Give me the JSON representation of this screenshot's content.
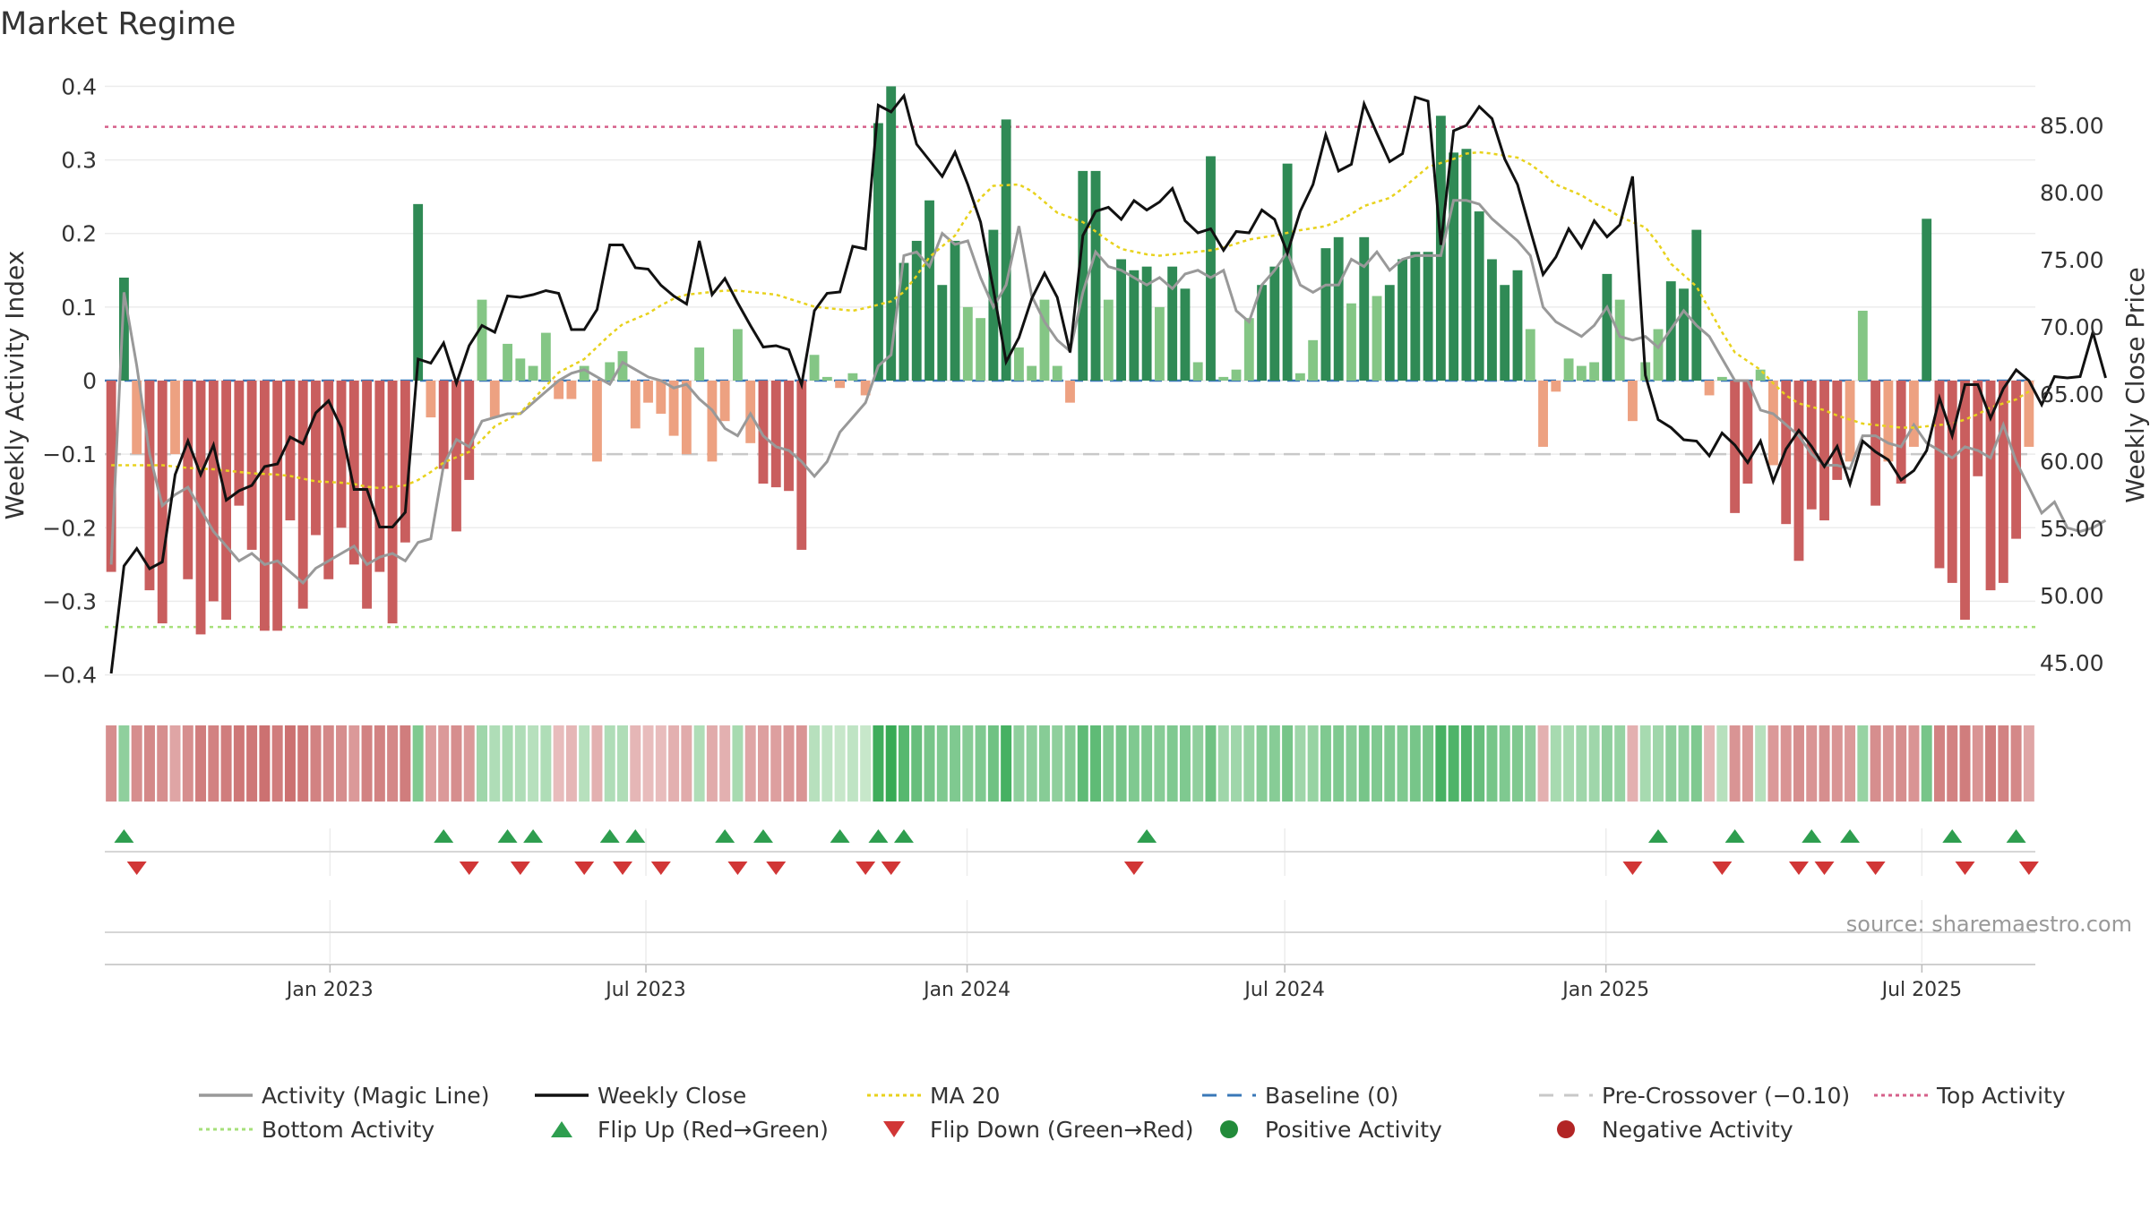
{
  "chart_data": {
    "type": "bar",
    "title": "Market Regime",
    "ylabel_left": "Weekly Activity Index",
    "ylabel_right": "Weekly Close Price",
    "source": "source: sharemaestro.com",
    "ylim_left": [
      -0.42,
      0.42
    ],
    "ylim_right": [
      43,
      89
    ],
    "yticks_left": [
      {
        "v": 0.4,
        "label": "0.4"
      },
      {
        "v": 0.3,
        "label": "0.3"
      },
      {
        "v": 0.2,
        "label": "0.2"
      },
      {
        "v": 0.1,
        "label": "0.1"
      },
      {
        "v": 0,
        "label": "0"
      },
      {
        "v": -0.1,
        "label": "−0.1"
      },
      {
        "v": -0.2,
        "label": "−0.2"
      },
      {
        "v": -0.3,
        "label": "−0.3"
      },
      {
        "v": -0.4,
        "label": "−0.4"
      }
    ],
    "yticks_right": [
      {
        "v": 85,
        "label": "85.00"
      },
      {
        "v": 80,
        "label": "80.00"
      },
      {
        "v": 75,
        "label": "75.00"
      },
      {
        "v": 70,
        "label": "70.00"
      },
      {
        "v": 65,
        "label": "65.00"
      },
      {
        "v": 60,
        "label": "60.00"
      },
      {
        "v": 55,
        "label": "55.00"
      },
      {
        "v": 50,
        "label": "50.00"
      },
      {
        "v": 45,
        "label": "45.00"
      }
    ],
    "x_date_range": [
      "2022-08-25",
      "2025-09-04"
    ],
    "xticks": [
      {
        "date": "2023-01-01",
        "label": "Jan 2023"
      },
      {
        "date": "2023-07-01",
        "label": "Jul 2023"
      },
      {
        "date": "2024-01-01",
        "label": "Jan 2024"
      },
      {
        "date": "2024-07-01",
        "label": "Jul 2024"
      },
      {
        "date": "2025-01-01",
        "label": "Jan 2025"
      },
      {
        "date": "2025-07-01",
        "label": "Jul 2025"
      }
    ],
    "reference_lines": {
      "top_activity": 0.345,
      "bottom_activity": -0.335,
      "pre_crossover": -0.1,
      "baseline": 0
    },
    "weekly_activity_index": [
      -0.26,
      0.14,
      -0.1,
      -0.285,
      -0.33,
      -0.1,
      -0.27,
      -0.345,
      -0.3,
      -0.325,
      -0.17,
      -0.23,
      -0.34,
      -0.34,
      -0.19,
      -0.31,
      -0.21,
      -0.27,
      -0.2,
      -0.25,
      -0.31,
      -0.26,
      -0.33,
      -0.22,
      0.24,
      -0.05,
      -0.12,
      -0.205,
      -0.135,
      0.11,
      -0.05,
      0.05,
      0.03,
      0.02,
      0.065,
      -0.025,
      -0.025,
      0.02,
      -0.11,
      0.025,
      0.04,
      -0.065,
      -0.03,
      -0.045,
      -0.075,
      -0.1,
      0.045,
      -0.11,
      -0.055,
      0.07,
      -0.085,
      -0.14,
      -0.145,
      -0.15,
      -0.23,
      0.035,
      0.005,
      -0.01,
      0.01,
      -0.02,
      0.35,
      0.4,
      0.16,
      0.19,
      0.245,
      0.13,
      0.19,
      0.1,
      0.085,
      0.205,
      0.355,
      0.045,
      0.02,
      0.11,
      0.02,
      -0.03,
      0.285,
      0.285,
      0.11,
      0.165,
      0.15,
      0.155,
      0.1,
      0.155,
      0.125,
      0.025,
      0.305,
      0.005,
      0.015,
      0.085,
      0.13,
      0.155,
      0.295,
      0.01,
      0.055,
      0.18,
      0.195,
      0.105,
      0.195,
      0.115,
      0.13,
      0.165,
      0.175,
      0.175,
      0.36,
      0.31,
      0.315,
      0.23,
      0.165,
      0.13,
      0.15,
      0.07,
      -0.09,
      -0.015,
      0.03,
      0.02,
      0.025,
      0.145,
      0.11,
      -0.055,
      0.025,
      0.07,
      0.135,
      0.125,
      0.205,
      -0.02,
      0.005,
      -0.18,
      -0.14,
      0.015,
      -0.115,
      -0.195,
      -0.245,
      -0.175,
      -0.19,
      -0.135,
      -0.11,
      0.095,
      -0.17,
      -0.11,
      -0.14,
      -0.09,
      0.22,
      -0.255,
      -0.275,
      -0.325,
      -0.13,
      -0.285,
      -0.275,
      -0.215,
      -0.09
    ],
    "weekly_close": [
      44.2,
      52.2,
      53.5,
      52,
      52.5,
      59,
      61.5,
      59,
      61.2,
      57.1,
      57.8,
      58.2,
      59.6,
      59.8,
      61.8,
      61.3,
      63.6,
      64.5,
      62.5,
      57.9,
      57.9,
      55.1,
      55.1,
      56.2,
      67.6,
      67.3,
      68.8,
      65.8,
      68.6,
      70.1,
      69.6,
      72.3,
      72.2,
      72.4,
      72.7,
      72.5,
      69.8,
      69.8,
      71.3,
      76.1,
      76.1,
      74.4,
      74.3,
      73.1,
      72.3,
      71.7,
      76.4,
      72.4,
      73.6,
      71.8,
      70.1,
      68.5,
      68.6,
      68.3,
      65.7,
      71.2,
      72.5,
      72.6,
      76,
      75.8,
      86.5,
      86,
      87.2,
      83.6,
      82.4,
      81.2,
      83,
      80.6,
      77.8,
      72.8,
      67.4,
      69.2,
      72.1,
      74,
      72.2,
      68.1,
      76.8,
      78.6,
      78.9,
      78,
      79.4,
      78.7,
      79.3,
      80.3,
      77.9,
      77,
      77.3,
      75.7,
      77.1,
      77,
      78.7,
      78,
      75.5,
      78.6,
      80.6,
      84.3,
      81.6,
      82.1,
      86.6,
      84.4,
      82.3,
      82.9,
      87.1,
      86.8,
      76.1,
      84.6,
      85,
      86.4,
      85.5,
      82.5,
      80.6,
      77.2,
      73.9,
      75.2,
      77.3,
      75.9,
      77.9,
      76.7,
      77.6,
      81.2,
      66.4,
      63.1,
      62.5,
      61.6,
      61.5,
      60.4,
      62.1,
      61.2,
      59.9,
      61.5,
      58.5,
      60.9,
      62.3,
      61.1,
      59.6,
      61.1,
      58.3,
      61.5,
      60.7,
      60.1,
      58.6,
      59.3,
      60.8,
      64.7,
      61.9,
      65.7,
      65.7,
      63.2,
      65.4,
      66.8,
      66,
      64.2,
      66.3,
      66.2,
      66.3,
      69.6,
      66.2
    ],
    "activity_magic_line": [
      -0.25,
      0.12,
      0.02,
      -0.1,
      -0.17,
      -0.155,
      -0.145,
      -0.175,
      -0.205,
      -0.225,
      -0.245,
      -0.235,
      -0.25,
      -0.245,
      -0.26,
      -0.275,
      -0.255,
      -0.245,
      -0.235,
      -0.225,
      -0.25,
      -0.24,
      -0.235,
      -0.245,
      -0.22,
      -0.215,
      -0.115,
      -0.08,
      -0.09,
      -0.055,
      -0.05,
      -0.045,
      -0.045,
      -0.03,
      -0.015,
      0,
      0.01,
      0.015,
      0.005,
      -0.005,
      0.025,
      0.015,
      0.005,
      0.0,
      -0.01,
      -0.005,
      -0.025,
      -0.04,
      -0.065,
      -0.075,
      -0.045,
      -0.075,
      -0.09,
      -0.095,
      -0.11,
      -0.13,
      -0.11,
      -0.07,
      -0.05,
      -0.03,
      0.02,
      0.035,
      0.17,
      0.175,
      0.155,
      0.2,
      0.185,
      0.19,
      0.14,
      0.1,
      0.13,
      0.21,
      0.115,
      0.08,
      0.055,
      0.04,
      0.12,
      0.175,
      0.155,
      0.15,
      0.14,
      0.13,
      0.14,
      0.125,
      0.145,
      0.15,
      0.14,
      0.15,
      0.095,
      0.08,
      0.13,
      0.15,
      0.175,
      0.13,
      0.12,
      0.13,
      0.13,
      0.165,
      0.155,
      0.175,
      0.15,
      0.165,
      0.17,
      0.17,
      0.17,
      0.245,
      0.245,
      0.24,
      0.22,
      0.205,
      0.19,
      0.17,
      0.1,
      0.08,
      0.07,
      0.06,
      0.075,
      0.1,
      0.06,
      0.055,
      0.06,
      0.045,
      0.07,
      0.095,
      0.075,
      0.06,
      0.03,
      0.0,
      0.0,
      -0.04,
      -0.045,
      -0.06,
      -0.075,
      -0.1,
      -0.115,
      -0.115,
      -0.12,
      -0.075,
      -0.075,
      -0.085,
      -0.09,
      -0.06,
      -0.085,
      -0.095,
      -0.105,
      -0.09,
      -0.095,
      -0.105,
      -0.06,
      -0.11,
      -0.145,
      -0.18,
      -0.165,
      -0.2,
      -0.205,
      -0.2,
      -0.19
    ],
    "ma_20": [
      59.7,
      59.7,
      59.7,
      59.7,
      59.6,
      59.5,
      59.4,
      59.3,
      59.2,
      59.1,
      59.0,
      58.9,
      58.7,
      58.5,
      58.4,
      58.3,
      58.1,
      58.0,
      58.2,
      58.6,
      59.2,
      59.9,
      60.7,
      61.6,
      62.6,
      63.6,
      64.6,
      65.6,
      66.6,
      67.6,
      68.5,
      69.4,
      70.2,
      71.0,
      71.6,
      72.1,
      72.4,
      72.6,
      72.7,
      72.7,
      72.6,
      72.4,
      72.1,
      71.8,
      71.5,
      71.3,
      71.2,
      71.4,
      71.9,
      72.6,
      73.8,
      75.2,
      76.8,
      78.3,
      79.6,
      80.5,
      80.6,
      80.1,
      79.3,
      78.5,
      77.8,
      77.1,
      76.4,
      75.8,
      75.4,
      75.3,
      75.4,
      75.5,
      75.7,
      75.9,
      76.2,
      76.5,
      76.8,
      77.0,
      77.2,
      77.5,
      77.9,
      78.4,
      79.0,
      79.6,
      80.3,
      81.1,
      81.9,
      82.5,
      82.9,
      83.0,
      82.9,
      82.6,
      82.1,
      81.4,
      80.6,
      79.8,
      79.2,
      78.8,
      78.2,
      77.4,
      76.2,
      74.7,
      73.0,
      71.3,
      69.6,
      68.1,
      66.8,
      65.8,
      64.9,
      64.3,
      63.8,
      63.4,
      63.1,
      62.8,
      62.6,
      62.5,
      62.5,
      62.6,
      62.8,
      63.1,
      63.5,
      64.0,
      64.6,
      65.2
    ],
    "regime_strip": [
      -0.55,
      0.45,
      -0.55,
      -0.6,
      -0.55,
      -0.35,
      -0.55,
      -0.7,
      -0.65,
      -0.7,
      -0.75,
      -0.75,
      -0.8,
      -0.7,
      -0.8,
      -0.75,
      -0.65,
      -0.6,
      -0.55,
      -0.45,
      -0.65,
      -0.65,
      -0.6,
      -0.7,
      0.55,
      -0.4,
      -0.45,
      -0.55,
      -0.45,
      0.35,
      0.25,
      0.3,
      0.25,
      0.2,
      0.25,
      -0.15,
      -0.2,
      0.2,
      -0.25,
      0.25,
      0.25,
      -0.2,
      -0.15,
      -0.15,
      -0.25,
      -0.3,
      0.25,
      -0.3,
      -0.25,
      0.3,
      -0.35,
      -0.4,
      -0.4,
      -0.45,
      -0.5,
      0.2,
      0.15,
      0.1,
      0.15,
      0.1,
      0.95,
      1.0,
      0.8,
      0.7,
      0.6,
      0.55,
      0.55,
      0.5,
      0.55,
      0.65,
      0.9,
      0.45,
      0.45,
      0.5,
      0.45,
      0.5,
      0.75,
      0.75,
      0.55,
      0.6,
      0.55,
      0.55,
      0.5,
      0.55,
      0.55,
      0.45,
      0.65,
      0.35,
      0.35,
      0.4,
      0.5,
      0.5,
      0.6,
      0.35,
      0.4,
      0.55,
      0.55,
      0.5,
      0.6,
      0.55,
      0.55,
      0.55,
      0.6,
      0.6,
      0.9,
      0.85,
      0.85,
      0.7,
      0.6,
      0.55,
      0.55,
      0.45,
      -0.25,
      0.3,
      0.3,
      0.35,
      0.35,
      0.45,
      0.4,
      -0.25,
      0.3,
      0.35,
      0.45,
      0.45,
      0.55,
      -0.2,
      0.2,
      -0.5,
      -0.45,
      0.2,
      -0.45,
      -0.5,
      -0.55,
      -0.5,
      -0.55,
      -0.5,
      -0.45,
      0.4,
      -0.55,
      -0.5,
      -0.55,
      -0.5,
      0.6,
      -0.65,
      -0.65,
      -0.7,
      -0.5,
      -0.7,
      -0.65,
      -0.6,
      -0.35
    ],
    "flip_up_indices": [
      1,
      26,
      31,
      33,
      39,
      41,
      48,
      51,
      57,
      60,
      62,
      81,
      121,
      127,
      133,
      136,
      144,
      149
    ],
    "flip_down_indices": [
      2,
      28,
      32,
      37,
      40,
      43,
      49,
      52,
      59,
      61,
      80,
      119,
      126,
      132,
      134,
      138,
      145,
      150
    ],
    "legend": [
      {
        "key": "activity",
        "label": "Activity (Magic Line)",
        "color": "#999999",
        "kind": "line"
      },
      {
        "key": "close",
        "label": "Weekly Close",
        "color": "#111111",
        "kind": "line"
      },
      {
        "key": "ma",
        "label": "MA 20",
        "color": "#e8d21d",
        "kind": "dotted"
      },
      {
        "key": "baseline",
        "label": "Baseline (0)",
        "color": "#3a78b8",
        "kind": "dashed"
      },
      {
        "key": "precross",
        "label": "Pre-Crossover (−0.10)",
        "color": "#c8c8c8",
        "kind": "dashed"
      },
      {
        "key": "top",
        "label": "Top Activity",
        "color": "#d6608a",
        "kind": "dotted"
      },
      {
        "key": "bottom",
        "label": "Bottom Activity",
        "color": "#a6e07a",
        "kind": "dotted"
      },
      {
        "key": "flipup",
        "label": "Flip Up (Red→Green)",
        "color": "#2e9e4f",
        "kind": "tri-up"
      },
      {
        "key": "flipdown",
        "label": "Flip Down (Green→Red)",
        "color": "#d13636",
        "kind": "tri-down"
      },
      {
        "key": "pos",
        "label": "Positive Activity",
        "color": "#228b3a",
        "kind": "dot"
      },
      {
        "key": "neg",
        "label": "Negative Activity",
        "color": "#b22525",
        "kind": "dot"
      }
    ],
    "colors": {
      "pos_strong": "#2f8a55",
      "pos_weak": "#84c685",
      "neg_strong": "#c95e5e",
      "neg_weak": "#eda181"
    }
  }
}
